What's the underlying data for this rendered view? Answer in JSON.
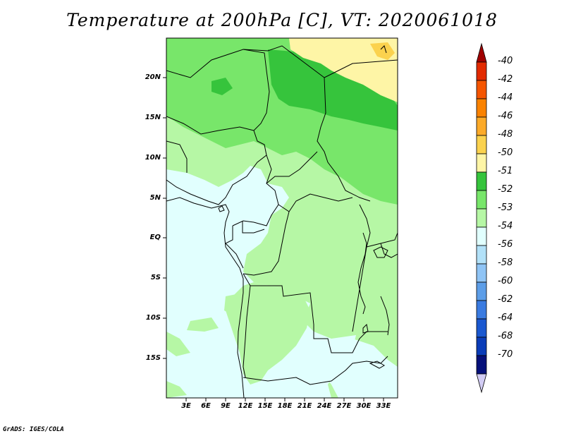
{
  "title": "Temperature at 200hPa [C], VT: 2020061018",
  "credit": "GrADS: IGES/COLA",
  "lat_labels": [
    "20N",
    "15N",
    "10N",
    "5N",
    "EQ",
    "5S",
    "10S",
    "15S"
  ],
  "lon_labels": [
    "3E",
    "6E",
    "9E",
    "12E",
    "15E",
    "18E",
    "21E",
    "24E",
    "27E",
    "30E",
    "33E"
  ],
  "colorbar": {
    "labels": [
      "-40",
      "-42",
      "-44",
      "-46",
      "-48",
      "-50",
      "-51",
      "-52",
      "-53",
      "-54",
      "-56",
      "-58",
      "-60",
      "-62",
      "-64",
      "-68",
      "-70"
    ],
    "colors": [
      "#a00000",
      "#e22a00",
      "#f55500",
      "#fa8200",
      "#fcaa28",
      "#fbd24e",
      "#fef5a6",
      "#36c43c",
      "#78e66a",
      "#b6f7a5",
      "#e1fffe",
      "#b2e1f8",
      "#8fc4f5",
      "#5d9ee8",
      "#3a7be1",
      "#1a58d0",
      "#0a3cb8",
      "#06107a",
      "#d2ccf4"
    ]
  },
  "map_colors": {
    "cold": "#e1fffe",
    "mid": "#b6f7a5",
    "warm": "#78e66a",
    "warmer": "#36c43c",
    "hot": "#fef5a6",
    "hottest": "#fbd24e"
  }
}
